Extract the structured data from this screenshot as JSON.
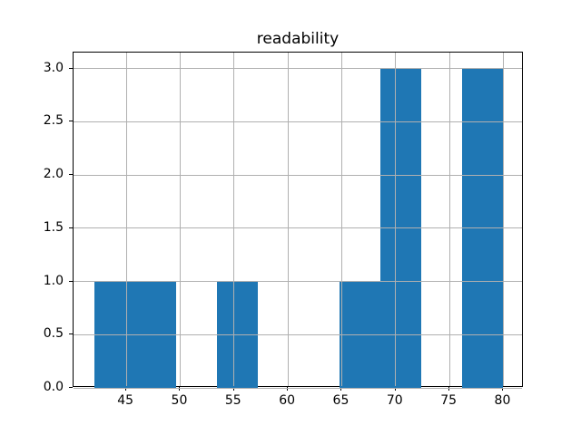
{
  "chart_data": {
    "type": "bar",
    "subtype": "histogram",
    "title": "readability",
    "xlabel": "",
    "ylabel": "",
    "bin_edges": [
      42.0,
      45.8,
      49.6,
      53.4,
      57.2,
      61.0,
      64.8,
      68.6,
      72.4,
      76.2,
      80.0
    ],
    "counts": [
      1,
      1,
      0,
      1,
      0,
      0,
      1,
      3,
      0,
      3
    ],
    "xlim": [
      40.1,
      81.9
    ],
    "ylim": [
      0,
      3.15
    ],
    "x_ticks": [
      45,
      50,
      55,
      60,
      65,
      70,
      75,
      80
    ],
    "x_tick_labels": [
      "45",
      "50",
      "55",
      "60",
      "65",
      "70",
      "75",
      "80"
    ],
    "y_ticks": [
      0.0,
      0.5,
      1.0,
      1.5,
      2.0,
      2.5,
      3.0
    ],
    "y_tick_labels": [
      "0.0",
      "0.5",
      "1.0",
      "1.5",
      "2.0",
      "2.5",
      "3.0"
    ],
    "grid": true,
    "grid_above_bars": true,
    "legend_position": "none",
    "colors": {
      "bar": "#1f77b4",
      "grid": "#b0b0b0",
      "axis": "#000000",
      "background": "#ffffff",
      "text": "#000000"
    }
  }
}
